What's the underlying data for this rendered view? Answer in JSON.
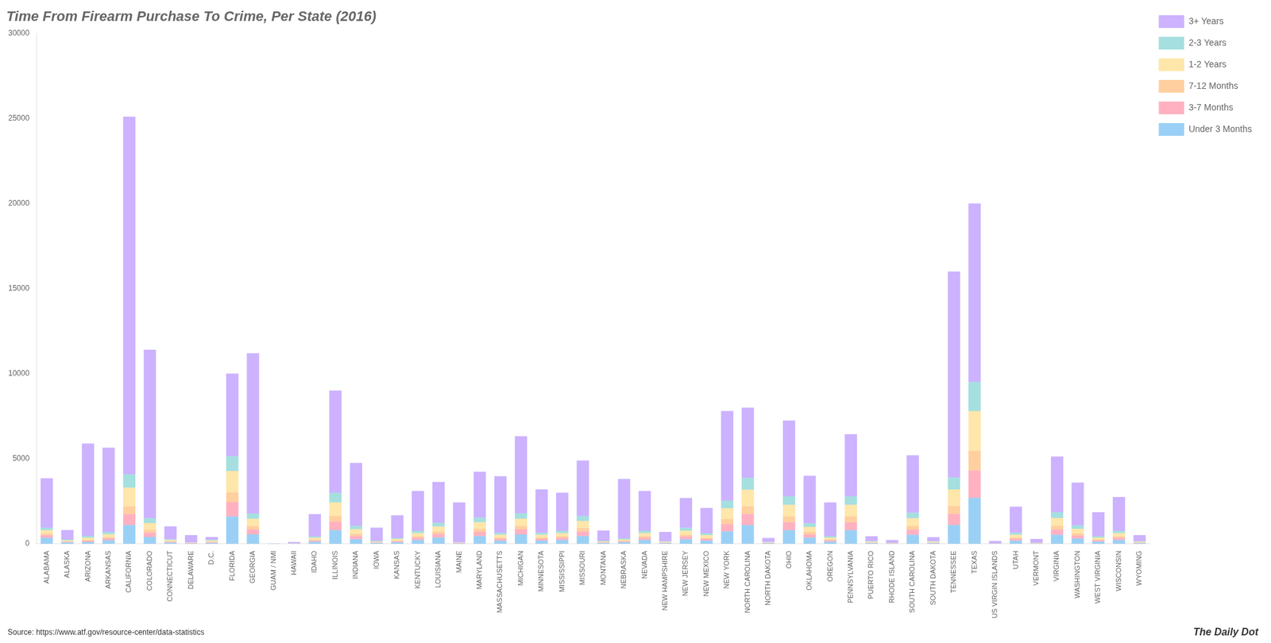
{
  "chart_data": {
    "type": "bar",
    "title": "Time From Firearm Purchase To Crime, Per State (2016)",
    "annotations": [
      "Source: https://www.atf.gov/resource-center/data-statistics",
      "The Daily Dot"
    ],
    "categories": [
      "ALABAMA",
      "ALASKA",
      "ARIZONA",
      "ARKANSAS",
      "CALIFORNIA",
      "COLORADO",
      "CONNECTICUT",
      "DELAWARE",
      "D.C.",
      "FLORIDA",
      "GEORGIA",
      "GUAM / NMI",
      "HAWAII",
      "IDAHO",
      "ILLINOIS",
      "INDIANA",
      "IOWA",
      "KANSAS",
      "KENTUCKY",
      "LOUISIANA",
      "MAINE",
      "MARYLAND",
      "MASSACHUSETTS",
      "MICHIGAN",
      "MINNESOTA",
      "MISSISSIPPI",
      "MISSOURI",
      "MONTANA",
      "NEBRASKA",
      "NEVADA",
      "NEW HAMPSHIRE",
      "NEW JERSEY",
      "NEW MEXICO",
      "NEW YORK",
      "NORTH CAROLINA",
      "NORTH DAKOTA",
      "OHIO",
      "OKLAHOMA",
      "OREGON",
      "PENNSYLVANIA",
      "PUERTO RICO",
      "RHODE ISLAND",
      "SOUTH CAROLINA",
      "SOUTH DAKOTA",
      "TENNESSEE",
      "TEXAS",
      "US VIRGIN ISLANDS",
      "UTAH",
      "VERMONT",
      "VIRGINIA",
      "WASHINGTON",
      "WEST VIRGINIA",
      "WISCONSIN",
      "WYOMING"
    ],
    "series": [
      {
        "name": "Under 3 Months",
        "values": [
          350,
          80,
          100,
          200,
          1100,
          400,
          70,
          25,
          50,
          1600,
          550,
          3,
          8,
          120,
          800,
          270,
          50,
          90,
          220,
          370,
          25,
          450,
          180,
          550,
          180,
          220,
          450,
          50,
          90,
          220,
          40,
          270,
          180,
          720,
          1100,
          30,
          800,
          350,
          130,
          800,
          40,
          18,
          530,
          40,
          1100,
          2700,
          8,
          180,
          18,
          530,
          300,
          130,
          220,
          40
        ]
      },
      {
        "name": "3-7 Months",
        "values": [
          150,
          35,
          70,
          110,
          650,
          250,
          45,
          14,
          35,
          850,
          290,
          2,
          5,
          70,
          500,
          180,
          28,
          58,
          130,
          200,
          14,
          250,
          108,
          290,
          108,
          130,
          270,
          28,
          50,
          130,
          25,
          158,
          101,
          432,
          650,
          18,
          468,
          200,
          72,
          468,
          25,
          11,
          303,
          25,
          650,
          1600,
          5,
          108,
          11,
          308,
          180,
          72,
          130,
          25
        ]
      },
      {
        "name": "7-12 Months",
        "values": [
          100,
          25,
          50,
          80,
          450,
          180,
          32,
          10,
          25,
          580,
          200,
          1,
          4,
          50,
          350,
          130,
          20,
          40,
          90,
          140,
          10,
          180,
          78,
          200,
          78,
          90,
          195,
          20,
          35,
          90,
          18,
          108,
          72,
          310,
          450,
          12,
          338,
          145,
          52,
          338,
          18,
          8,
          218,
          18,
          468,
          1160,
          4,
          78,
          8,
          222,
          130,
          52,
          90,
          18
        ]
      },
      {
        "name": "1-2 Years",
        "values": [
          200,
          60,
          140,
          170,
          1100,
          390,
          70,
          19,
          70,
          1250,
          428,
          3,
          8,
          108,
          778,
          272,
          42,
          85,
          194,
          303,
          19,
          382,
          163,
          436,
          163,
          187,
          421,
          42,
          74,
          194,
          35,
          234,
          155,
          622,
          972,
          27,
          685,
          296,
          108,
          685,
          39,
          15,
          451,
          39,
          972,
          2335,
          6,
          163,
          15,
          459,
          272,
          108,
          187,
          35
        ]
      },
      {
        "name": "2-3 Years",
        "values": [
          140,
          45,
          100,
          125,
          780,
          280,
          50,
          14,
          50,
          860,
          310,
          2,
          5,
          78,
          558,
          196,
          30,
          62,
          140,
          218,
          14,
          272,
          116,
          312,
          116,
          134,
          303,
          30,
          53,
          140,
          25,
          167,
          111,
          450,
          700,
          19,
          493,
          210,
          78,
          493,
          28,
          11,
          320,
          28,
          700,
          1715,
          4,
          116,
          11,
          331,
          196,
          78,
          136,
          25
        ]
      },
      {
        "name": "3+ Years",
        "values": [
          2910,
          560,
          5430,
          4965,
          21020,
          9900,
          753,
          423,
          170,
          4864,
          9422,
          12,
          75,
          1314,
          6014,
          3702,
          780,
          1335,
          2326,
          2399,
          2348,
          2696,
          3325,
          4532,
          2545,
          2239,
          3251,
          610,
          3508,
          2326,
          557,
          1758,
          1481,
          5268,
          4128,
          231,
          4456,
          2799,
          1990,
          3656,
          290,
          157,
          3378,
          240,
          12112,
          10490,
          137,
          1535,
          219,
          3275,
          2522,
          1410,
          1987,
          368
        ]
      }
    ],
    "stacked": true,
    "ylim": [
      0,
      30000
    ],
    "yticks": [
      0,
      5000,
      10000,
      15000,
      20000,
      25000,
      30000
    ],
    "grid": false,
    "legend": "upper right"
  }
}
